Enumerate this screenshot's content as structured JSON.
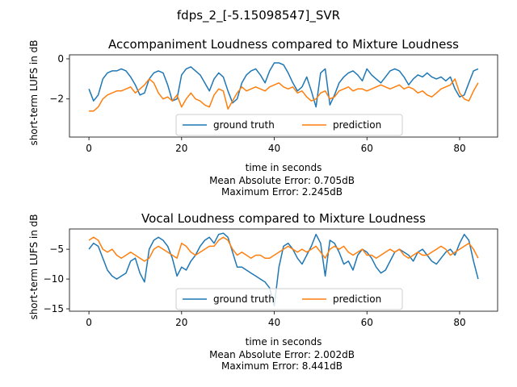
{
  "figure": {
    "suptitle": "fdps_2_[-5.15098547]_SVR"
  },
  "chart_data": [
    {
      "type": "line",
      "title": "Accompaniment Loudness compared to Mixture Loudness",
      "xlabel": "time in seconds",
      "ylabel": "short-term LUFS in dB",
      "notes": [
        "Mean Absolute Error: 0.705dB",
        "Maximum Error: 2.245dB"
      ],
      "xlim": [
        -4.2,
        88.2
      ],
      "ylim": [
        -3.9,
        0.2
      ],
      "xticks": [
        0,
        20,
        40,
        60,
        80
      ],
      "yticks": [
        -2,
        0
      ],
      "legend": "bottom-center",
      "series": [
        {
          "name": "ground truth",
          "color": "#1f77b4",
          "x": [
            0,
            1,
            2,
            3,
            4,
            5,
            6,
            7,
            8,
            9,
            10,
            11,
            12,
            13,
            14,
            15,
            16,
            17,
            18,
            19,
            20,
            21,
            22,
            23,
            24,
            25,
            26,
            27,
            28,
            29,
            30,
            31,
            32,
            33,
            34,
            35,
            36,
            37,
            38,
            39,
            40,
            41,
            42,
            43,
            44,
            45,
            46,
            47,
            48,
            49,
            50,
            51,
            52,
            53,
            54,
            55,
            56,
            57,
            58,
            59,
            60,
            61,
            62,
            63,
            64,
            65,
            66,
            67,
            68,
            69,
            70,
            71,
            72,
            73,
            74,
            75,
            76,
            77,
            78,
            79,
            80,
            81,
            82,
            83,
            84
          ],
          "values": [
            -1.5,
            -2.1,
            -1.8,
            -1.0,
            -0.7,
            -0.6,
            -0.6,
            -0.5,
            -0.6,
            -0.9,
            -1.3,
            -1.8,
            -1.7,
            -1.0,
            -0.7,
            -0.6,
            -0.7,
            -1.3,
            -2.1,
            -2.0,
            -0.8,
            -0.5,
            -0.4,
            -0.6,
            -0.8,
            -1.2,
            -1.6,
            -1.0,
            -0.7,
            -0.9,
            -1.6,
            -2.2,
            -2.0,
            -1.2,
            -0.8,
            -0.6,
            -0.5,
            -0.8,
            -1.2,
            -0.6,
            -0.2,
            -0.2,
            -0.3,
            -0.7,
            -1.2,
            -1.6,
            -1.4,
            -0.9,
            -1.6,
            -2.4,
            -0.7,
            -0.5,
            -2.3,
            -1.8,
            -1.2,
            -0.9,
            -0.7,
            -0.6,
            -0.8,
            -1.1,
            -0.5,
            -0.8,
            -1.0,
            -1.2,
            -0.9,
            -0.6,
            -0.5,
            -0.6,
            -0.9,
            -1.3,
            -1.0,
            -0.8,
            -0.9,
            -0.7,
            -0.9,
            -1.0,
            -0.9,
            -1.1,
            -0.9,
            -1.5,
            -1.9,
            -1.8,
            -1.2,
            -0.6,
            -0.5
          ]
        },
        {
          "name": "prediction",
          "color": "#ff7f0e",
          "x": [
            0,
            1,
            2,
            3,
            4,
            5,
            6,
            7,
            8,
            9,
            10,
            11,
            12,
            13,
            14,
            15,
            16,
            17,
            18,
            19,
            20,
            21,
            22,
            23,
            24,
            25,
            26,
            27,
            28,
            29,
            30,
            31,
            32,
            33,
            34,
            35,
            36,
            37,
            38,
            39,
            40,
            41,
            42,
            43,
            44,
            45,
            46,
            47,
            48,
            49,
            50,
            51,
            52,
            53,
            54,
            55,
            56,
            57,
            58,
            59,
            60,
            61,
            62,
            63,
            64,
            65,
            66,
            67,
            68,
            69,
            70,
            71,
            72,
            73,
            74,
            75,
            76,
            77,
            78,
            79,
            80,
            81,
            82,
            83,
            84
          ],
          "values": [
            -2.6,
            -2.6,
            -2.4,
            -2.0,
            -1.8,
            -1.7,
            -1.6,
            -1.6,
            -1.5,
            -1.4,
            -1.7,
            -1.5,
            -1.3,
            -1.0,
            -1.2,
            -1.7,
            -2.0,
            -1.9,
            -2.1,
            -1.8,
            -2.4,
            -2.0,
            -1.7,
            -2.0,
            -2.1,
            -2.3,
            -2.4,
            -1.8,
            -1.5,
            -1.6,
            -2.5,
            -2.1,
            -1.7,
            -1.4,
            -1.6,
            -1.5,
            -1.4,
            -1.5,
            -1.6,
            -1.4,
            -1.3,
            -1.2,
            -1.4,
            -1.5,
            -1.4,
            -1.7,
            -1.6,
            -1.9,
            -2.1,
            -2.0,
            -1.7,
            -1.6,
            -2.0,
            -1.9,
            -1.6,
            -1.5,
            -1.4,
            -1.6,
            -1.5,
            -1.5,
            -1.6,
            -1.5,
            -1.4,
            -1.3,
            -1.4,
            -1.5,
            -1.4,
            -1.3,
            -1.5,
            -1.4,
            -1.5,
            -1.7,
            -1.6,
            -1.8,
            -1.9,
            -1.7,
            -1.5,
            -1.4,
            -1.3,
            -1.0,
            -1.7,
            -2.0,
            -2.1,
            -1.6,
            -1.2
          ]
        }
      ]
    },
    {
      "type": "line",
      "title": "Vocal Loudness compared to Mixture Loudness",
      "xlabel": "time in seconds",
      "ylabel": "short-term LUFS in dB",
      "notes": [
        "Mean Absolute Error: 2.002dB",
        "Maximum Error: 8.441dB"
      ],
      "xlim": [
        -4.2,
        88.2
      ],
      "ylim": [
        -15.4,
        -1.6
      ],
      "xticks": [
        0,
        20,
        40,
        60,
        80
      ],
      "yticks": [
        -15,
        -10,
        -5
      ],
      "legend": "bottom-center",
      "series": [
        {
          "name": "ground truth",
          "color": "#1f77b4",
          "x": [
            0,
            1,
            2,
            3,
            4,
            5,
            6,
            7,
            8,
            9,
            10,
            11,
            12,
            13,
            14,
            15,
            16,
            17,
            18,
            19,
            20,
            21,
            22,
            23,
            24,
            25,
            26,
            27,
            28,
            29,
            30,
            31,
            32,
            33,
            34,
            35,
            36,
            37,
            38,
            39,
            40,
            41,
            42,
            43,
            44,
            45,
            46,
            47,
            48,
            49,
            50,
            51,
            52,
            53,
            54,
            55,
            56,
            57,
            58,
            59,
            60,
            61,
            62,
            63,
            64,
            65,
            66,
            67,
            68,
            69,
            70,
            71,
            72,
            73,
            74,
            75,
            76,
            77,
            78,
            79,
            80,
            81,
            82,
            83,
            84
          ],
          "values": [
            -5.0,
            -4.0,
            -4.5,
            -6.5,
            -8.5,
            -9.5,
            -10.0,
            -9.5,
            -9.0,
            -7.0,
            -6.5,
            -9.0,
            -10.5,
            -5.0,
            -3.5,
            -3.0,
            -3.5,
            -4.5,
            -6.5,
            -9.5,
            -8.0,
            -8.5,
            -7.0,
            -6.0,
            -4.5,
            -3.5,
            -3.0,
            -4.0,
            -2.5,
            -2.3,
            -3.0,
            -5.5,
            -8.0,
            -8.0,
            -8.5,
            -9.0,
            -9.5,
            -10.0,
            -10.5,
            -11.5,
            -14.5,
            -8.0,
            -4.5,
            -4.0,
            -5.0,
            -6.5,
            -7.5,
            -6.0,
            -4.5,
            -2.5,
            -4.0,
            -9.5,
            -3.5,
            -4.0,
            -5.5,
            -7.5,
            -7.0,
            -8.5,
            -6.0,
            -5.0,
            -5.5,
            -6.5,
            -8.0,
            -9.0,
            -8.5,
            -7.0,
            -5.5,
            -5.0,
            -5.5,
            -6.0,
            -7.0,
            -5.5,
            -5.0,
            -6.0,
            -7.0,
            -7.5,
            -6.5,
            -5.5,
            -5.0,
            -6.0,
            -4.0,
            -2.5,
            -3.5,
            -7.0,
            -10.0
          ]
        },
        {
          "name": "prediction",
          "color": "#ff7f0e",
          "x": [
            0,
            1,
            2,
            3,
            4,
            5,
            6,
            7,
            8,
            9,
            10,
            11,
            12,
            13,
            14,
            15,
            16,
            17,
            18,
            19,
            20,
            21,
            22,
            23,
            24,
            25,
            26,
            27,
            28,
            29,
            30,
            31,
            32,
            33,
            34,
            35,
            36,
            37,
            38,
            39,
            40,
            41,
            42,
            43,
            44,
            45,
            46,
            47,
            48,
            49,
            50,
            51,
            52,
            53,
            54,
            55,
            56,
            57,
            58,
            59,
            60,
            61,
            62,
            63,
            64,
            65,
            66,
            67,
            68,
            69,
            70,
            71,
            72,
            73,
            74,
            75,
            76,
            77,
            78,
            79,
            80,
            81,
            82,
            83,
            84
          ],
          "values": [
            -3.5,
            -3.0,
            -3.5,
            -5.0,
            -5.5,
            -5.0,
            -6.0,
            -6.5,
            -6.0,
            -5.5,
            -6.0,
            -6.5,
            -7.0,
            -6.5,
            -5.0,
            -4.5,
            -5.0,
            -5.5,
            -6.0,
            -6.5,
            -4.0,
            -4.5,
            -5.5,
            -6.0,
            -5.5,
            -5.0,
            -4.5,
            -4.5,
            -3.5,
            -3.0,
            -3.5,
            -5.0,
            -6.0,
            -5.5,
            -6.0,
            -6.5,
            -6.0,
            -6.0,
            -6.5,
            -6.5,
            -6.0,
            -5.5,
            -5.0,
            -4.5,
            -5.0,
            -5.5,
            -5.0,
            -5.5,
            -5.0,
            -4.5,
            -5.5,
            -6.5,
            -5.0,
            -4.5,
            -5.0,
            -4.5,
            -5.5,
            -6.0,
            -5.5,
            -5.0,
            -6.0,
            -6.0,
            -6.5,
            -6.0,
            -5.5,
            -5.0,
            -5.5,
            -5.0,
            -6.0,
            -6.5,
            -6.0,
            -5.5,
            -6.0,
            -6.0,
            -5.5,
            -5.0,
            -4.5,
            -5.0,
            -6.0,
            -5.5,
            -5.0,
            -4.5,
            -4.0,
            -5.0,
            -6.5
          ]
        }
      ]
    }
  ]
}
